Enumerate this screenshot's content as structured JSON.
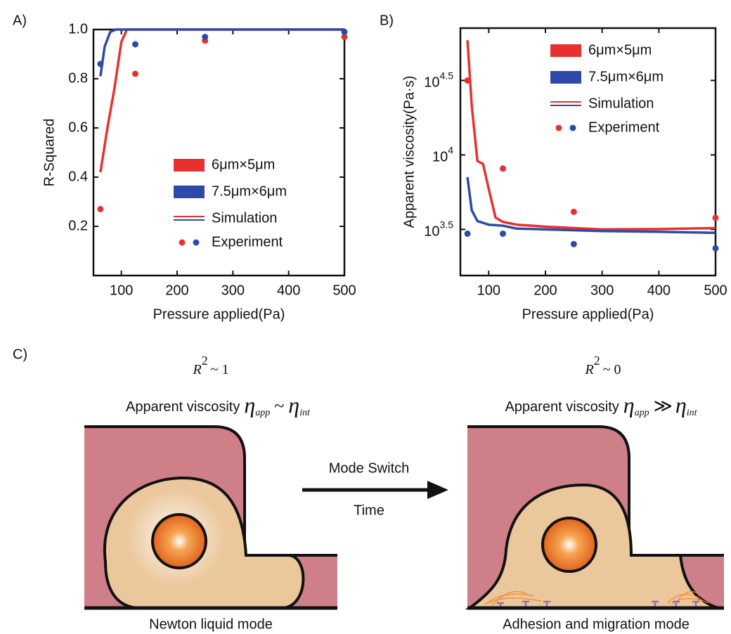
{
  "chart_data": [
    {
      "type": "line",
      "panel": "A)",
      "y_label": "R-Squared",
      "x_label": "Pressure applied(Pa)",
      "xlim": [
        50,
        500
      ],
      "xticks": [
        100,
        200,
        300,
        400,
        500
      ],
      "ylim": [
        0,
        1
      ],
      "yticks": [
        0.2,
        0.4,
        0.6,
        0.8,
        {
          "value": 1,
          "label": "1.0"
        }
      ],
      "log_y": false,
      "grid": false,
      "legend": "center right",
      "style_labels": [
        "Simulation",
        "Experiment"
      ],
      "series": [
        {
          "name": "6μm×5μm",
          "color": "#e8312f",
          "simulation": {
            "x": [
              62.5,
              75,
              87.5,
              100,
              110,
              125,
              250,
              500
            ],
            "values": [
              0.42,
              0.6,
              0.76,
              0.95,
              1.0,
              1.0,
              1.0,
              1.0
            ]
          },
          "experiment": {
            "x": [
              62.5,
              125,
              250,
              500
            ],
            "values": [
              0.27,
              0.82,
              0.955,
              0.97
            ]
          }
        },
        {
          "name": "7.5μm×6μm",
          "color": "#2e4aa8",
          "simulation": {
            "x": [
              62.5,
              70,
              80,
              90,
              125,
              250,
              500
            ],
            "values": [
              0.81,
              0.93,
              0.99,
              1.0,
              1.0,
              1.0,
              1.0
            ]
          },
          "experiment": {
            "x": [
              62.5,
              125,
              250,
              500
            ],
            "values": [
              0.86,
              0.94,
              0.97,
              0.99
            ]
          }
        }
      ]
    },
    {
      "type": "line",
      "panel": "B)",
      "y_label": "Apparent viscosity(Pa·s)",
      "x_label": "Pressure applied(Pa)",
      "xlim": [
        50,
        500
      ],
      "xticks": [
        100,
        200,
        300,
        400,
        500
      ],
      "ylim": [
        1550,
        71000
      ],
      "yticks": [
        {
          "value": 3162.28,
          "label": "10",
          "exponent": "3.5"
        },
        {
          "value": 10000,
          "label": "10",
          "exponent": "4"
        },
        {
          "value": 31622.8,
          "label": "10",
          "exponent": "4.5"
        }
      ],
      "log_y": true,
      "grid": false,
      "legend": "upper right",
      "style_labels": [
        "Simulation",
        "Experiment"
      ],
      "series": [
        {
          "name": "6μm×5μm",
          "color": "#e8312f",
          "simulation": {
            "x": [
              62.5,
              70,
              80,
              90,
              100,
              112,
              125,
              150,
              200,
              300,
              400,
              500
            ],
            "values": [
              58900,
              21500,
              9100,
              8700,
              5900,
              3800,
              3550,
              3400,
              3300,
              3162,
              3180,
              3230
            ]
          },
          "experiment": {
            "x": [
              62.5,
              125,
              250,
              500
            ],
            "values": [
              31600,
              8100,
              4150,
              3780
            ]
          }
        },
        {
          "name": "7.5μm×6μm",
          "color": "#2e4aa8",
          "simulation": {
            "x": [
              62.5,
              70,
              80,
              100,
              125,
              150,
              200,
              300,
              400,
              500
            ],
            "values": [
              7100,
              4250,
              3600,
              3400,
              3350,
              3200,
              3162,
              3080,
              3050,
              3000
            ]
          },
          "experiment": {
            "x": [
              62.5,
              125,
              250,
              500
            ],
            "values": [
              2960,
              2960,
              2520,
              2360
            ]
          }
        }
      ]
    }
  ],
  "diagram": {
    "panel": "C)",
    "left": {
      "r_base": "R",
      "r_sup": "2",
      "r_rest": "~ 1",
      "label": "Apparent viscosity",
      "eta": "η",
      "sub1": "app",
      "relation": "~",
      "eta2": "η",
      "sub2": "int",
      "caption": "Newton liquid mode"
    },
    "right": {
      "r_base": "R",
      "r_sup": "2",
      "r_rest": "~ 0",
      "label": "Apparent viscosity",
      "eta": "η",
      "sub1": "app",
      "relation": "≫",
      "eta2": "η",
      "sub2": "int",
      "caption": "Adhesion and migration mode"
    },
    "arrow_top": "Mode Switch",
    "arrow_bottom": "Time"
  }
}
